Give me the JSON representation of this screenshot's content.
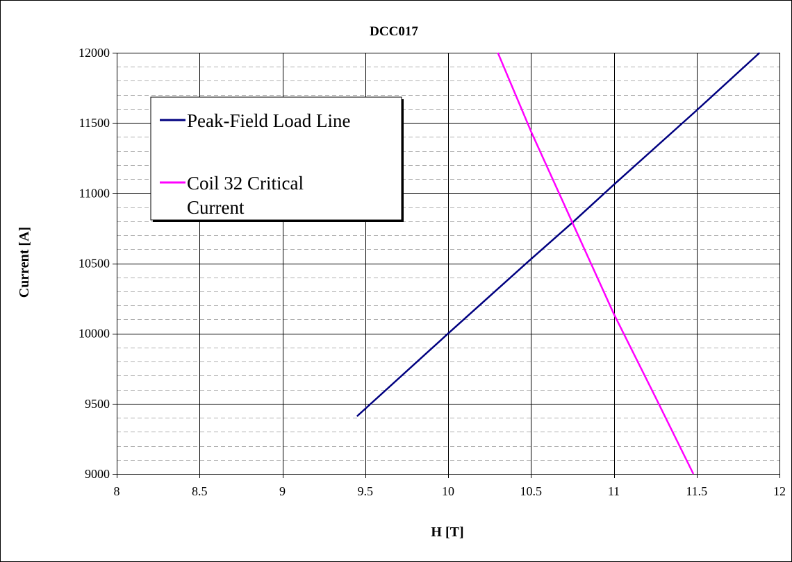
{
  "chart_data": {
    "type": "line",
    "title": "DCC017",
    "xlabel": "H [T]",
    "ylabel": "Current [A]",
    "xlim": [
      8,
      12
    ],
    "ylim": [
      9000,
      12000
    ],
    "x_ticks": [
      "8",
      "8.5",
      "9",
      "9.5",
      "10",
      "10.5",
      "11",
      "11.5",
      "12"
    ],
    "y_ticks": [
      "9000",
      "9500",
      "10000",
      "10500",
      "11000",
      "11500",
      "12000"
    ],
    "x_tick_values": [
      8,
      8.5,
      9,
      9.5,
      10,
      10.5,
      11,
      11.5,
      12
    ],
    "y_tick_values": [
      9000,
      9500,
      10000,
      10500,
      11000,
      11500,
      12000
    ],
    "y_minor_step": 100,
    "grid": true,
    "legend_position": "top-left",
    "series": [
      {
        "name": "Peak-Field Load Line",
        "color": "#000080",
        "x": [
          9.45,
          10.0,
          10.5,
          10.75,
          11.0,
          11.5,
          11.88
        ],
        "y": [
          9410,
          10000,
          10530,
          10790,
          11060,
          11590,
          12000
        ]
      },
      {
        "name": "Coil 32 Critical Current",
        "color": "#ff00ff",
        "x": [
          10.3,
          10.5,
          10.75,
          11.0,
          11.25,
          11.48
        ],
        "y": [
          12000,
          11440,
          10790,
          10140,
          9550,
          9000
        ]
      }
    ]
  },
  "legend": {
    "items": [
      {
        "lines": [
          "Peak-Field Load Line"
        ]
      },
      {
        "lines": [
          "Coil 32 Critical",
          "Current"
        ]
      }
    ]
  }
}
